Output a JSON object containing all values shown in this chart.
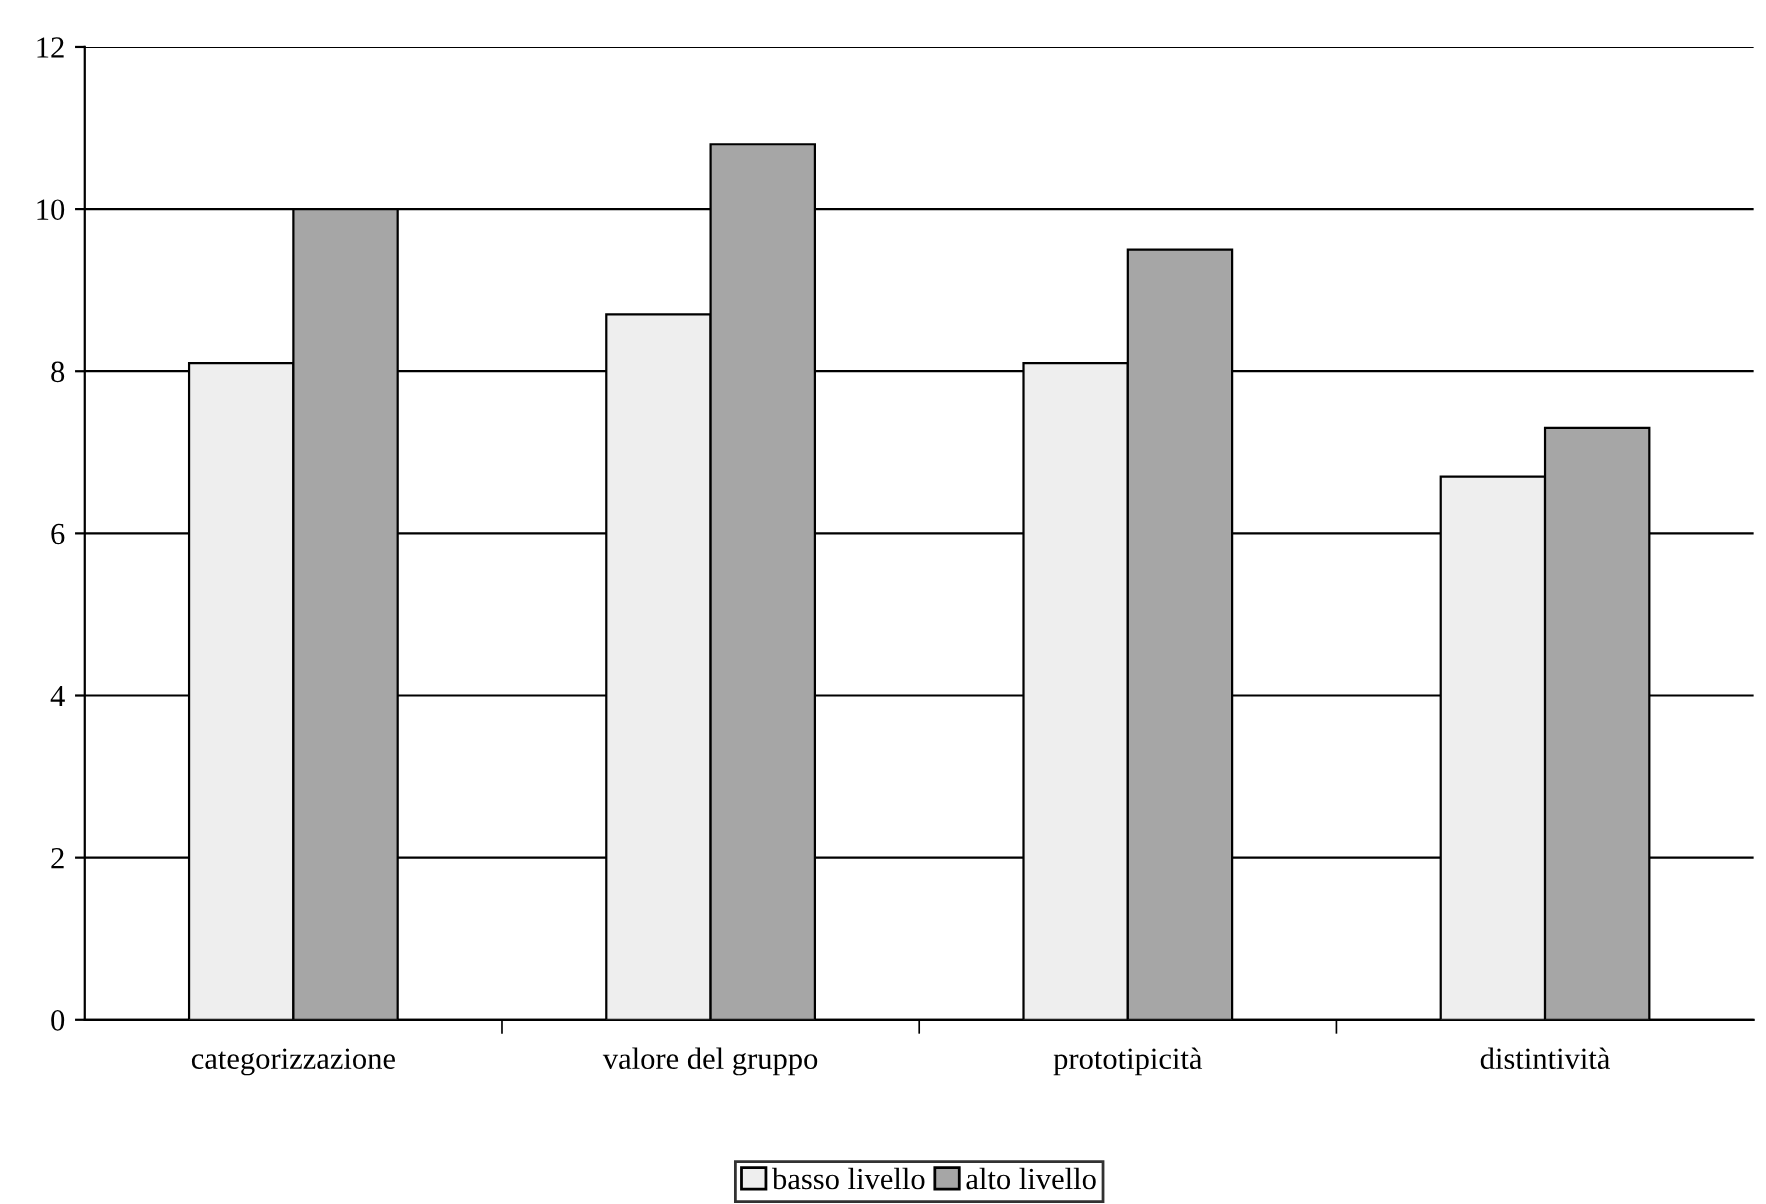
{
  "chart_data": {
    "type": "bar",
    "categories": [
      "categorizzazione",
      "valore del gruppo",
      "prototipicità",
      "distintività"
    ],
    "series": [
      {
        "name": "basso livello",
        "color": "#eeeeee",
        "values": [
          8.1,
          8.7,
          8.1,
          6.7
        ]
      },
      {
        "name": "alto livello",
        "color": "#a6a6a6",
        "values": [
          10.0,
          10.8,
          9.5,
          7.3
        ]
      }
    ],
    "ylim": [
      0,
      12
    ],
    "yticks": [
      0,
      2,
      4,
      6,
      8,
      10,
      12
    ],
    "grid": "y",
    "legend": "bottom"
  }
}
